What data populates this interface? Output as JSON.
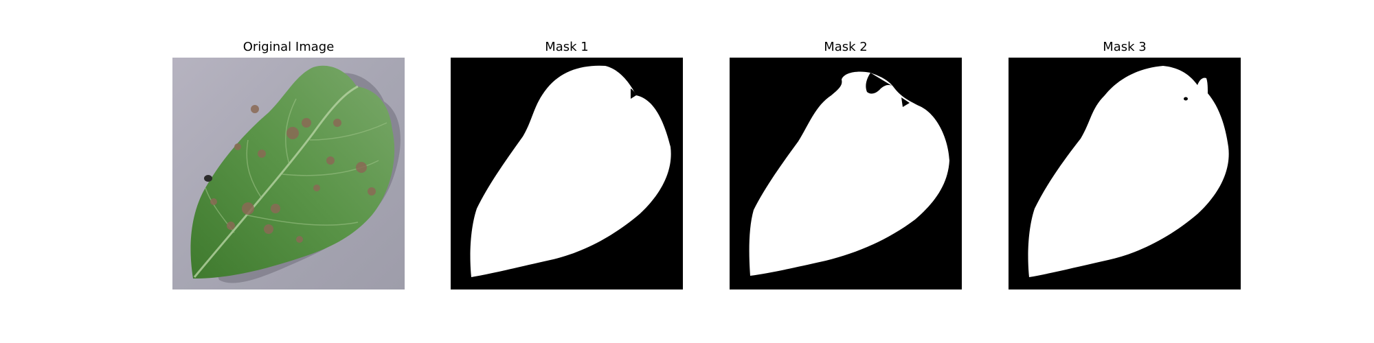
{
  "panels": [
    {
      "title": "Original Image",
      "kind": "photo"
    },
    {
      "title": "Mask 1",
      "kind": "mask"
    },
    {
      "title": "Mask 2",
      "kind": "mask"
    },
    {
      "title": "Mask 3",
      "kind": "mask"
    }
  ],
  "colors": {
    "mask_background": "#000000",
    "mask_foreground": "#ffffff",
    "photo_background": "#a9a8b4",
    "leaf_green": "#4e8a3c",
    "lesion_brown": "#8a6a55"
  }
}
